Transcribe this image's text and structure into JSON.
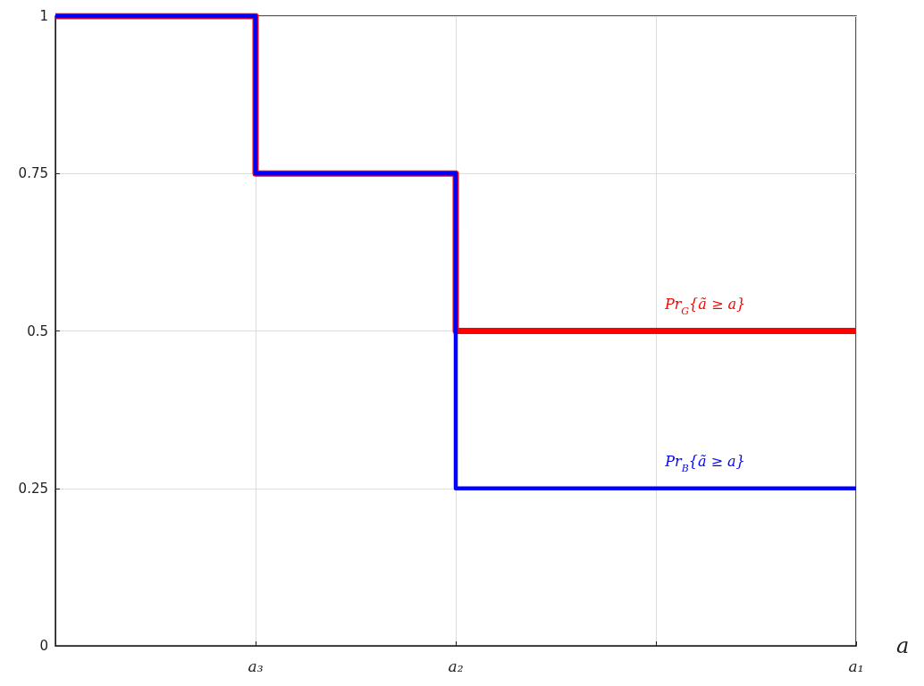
{
  "chart_data": {
    "type": "step",
    "xlabel": "a",
    "categories": [
      null,
      "a₃",
      "a₂",
      null,
      "a₁"
    ],
    "series": [
      {
        "name": "Pr$_{G}${ã ≥ a}",
        "color": "#ff0000",
        "values": [
          1,
          0.75,
          0.5,
          0.5,
          0.5
        ]
      },
      {
        "name": "Pr$_{B}${ã ≥ a}",
        "color": "#0000ff",
        "values": [
          1,
          0.75,
          0.25,
          0.25,
          0.25
        ]
      }
    ],
    "ylim": [
      0,
      1
    ],
    "yticks": [
      0,
      0.25,
      0.5,
      0.75,
      1
    ],
    "grid": true,
    "marker": "none",
    "line_style": "solid"
  }
}
